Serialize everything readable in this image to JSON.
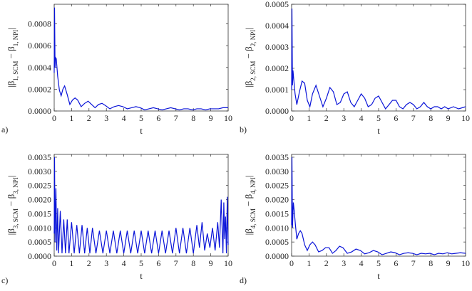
{
  "chart_data": [
    {
      "type": "line",
      "panel_label": "a)",
      "xlabel": "t",
      "ylabel": "|β1, SCM − β1, NPI|",
      "ylabel_parts": {
        "lhs": "|β",
        "lhs_sub": "1, SCM",
        "mid": " − β",
        "rhs_sub": "1, NPI",
        "end": "|"
      },
      "xlim": [
        0,
        10
      ],
      "ylim": [
        0,
        0.00098
      ],
      "xticks": [
        0,
        1,
        2,
        3,
        4,
        5,
        6,
        7,
        8,
        9,
        10
      ],
      "yticks": [
        "0.0000",
        "0.0002",
        "0.0004",
        "0.0006",
        "0.0008"
      ],
      "ytick_values": [
        0,
        0.0002,
        0.0004,
        0.0006,
        0.0008
      ],
      "series": [
        {
          "values": {
            "x": [
              0,
              0.02,
              0.05,
              0.08,
              0.12,
              0.2,
              0.3,
              0.4,
              0.5,
              0.6,
              0.75,
              0.9,
              1.05,
              1.2,
              1.35,
              1.55,
              1.75,
              1.95,
              2.15,
              2.35,
              2.55,
              2.75,
              2.95,
              3.2,
              3.45,
              3.7,
              3.95,
              4.2,
              4.45,
              4.7,
              4.95,
              5.2,
              5.45,
              5.7,
              5.95,
              6.2,
              6.45,
              6.7,
              6.95,
              7.2,
              7.45,
              7.7,
              7.95,
              8.2,
              8.45,
              8.7,
              8.95,
              9.2,
              9.45,
              9.7,
              10
            ],
            "y": [
              0.00035,
              0.00095,
              0.0004,
              0.00049,
              0.00048,
              0.00032,
              0.00019,
              0.00014,
              0.0002,
              0.00023,
              0.00015,
              6e-05,
              0.0001,
              0.00012,
              0.0001,
              4e-05,
              7e-05,
              9e-05,
              6e-05,
              3e-05,
              6e-05,
              7e-05,
              5e-05,
              2e-05,
              4e-05,
              5e-05,
              4e-05,
              2e-05,
              3e-05,
              4e-05,
              3e-05,
              1e-05,
              2e-05,
              3e-05,
              2e-05,
              1e-05,
              2e-05,
              3e-05,
              2e-05,
              1e-05,
              2e-05,
              2e-05,
              1e-05,
              2e-05,
              2e-05,
              1e-05,
              2e-05,
              2e-05,
              2e-05,
              3e-05,
              3e-05
            ]
          }
        }
      ]
    },
    {
      "type": "line",
      "panel_label": "b)",
      "xlabel": "t",
      "ylabel": "|β2, SCM − β2, NPI|",
      "ylabel_parts": {
        "lhs": "|β",
        "lhs_sub": "2, SCM",
        "mid": " − β",
        "rhs_sub": "2, NPI",
        "end": "|"
      },
      "xlim": [
        0,
        10
      ],
      "ylim": [
        0,
        0.0005
      ],
      "xticks": [
        0,
        1,
        2,
        3,
        4,
        5,
        6,
        7,
        8,
        9,
        10
      ],
      "yticks": [
        "0.0000",
        "0.0001",
        "0.0002",
        "0.0003",
        "0.0004",
        "0.0005"
      ],
      "ytick_values": [
        0,
        0.0001,
        0.0002,
        0.0003,
        0.0004,
        0.0005
      ],
      "series": [
        {
          "values": {
            "x": [
              0,
              0.02,
              0.05,
              0.08,
              0.12,
              0.2,
              0.3,
              0.45,
              0.6,
              0.75,
              0.9,
              1.05,
              1.2,
              1.4,
              1.6,
              1.8,
              2.0,
              2.2,
              2.4,
              2.6,
              2.8,
              3.0,
              3.2,
              3.4,
              3.6,
              3.8,
              4.0,
              4.2,
              4.4,
              4.6,
              4.8,
              5.0,
              5.2,
              5.4,
              5.6,
              5.8,
              6.0,
              6.2,
              6.4,
              6.6,
              6.8,
              7.0,
              7.2,
              7.4,
              7.6,
              7.8,
              8.0,
              8.2,
              8.4,
              8.6,
              8.8,
              9.0,
              9.3,
              9.6,
              10
            ],
            "y": [
              0.0001,
              0.00048,
              0.00012,
              0.00019,
              0.00015,
              8e-05,
              3e-05,
              9e-05,
              0.00014,
              0.00013,
              5e-05,
              2e-05,
              8e-05,
              0.00012,
              7e-05,
              2e-05,
              6e-05,
              0.00011,
              9e-05,
              3e-05,
              4e-05,
              8e-05,
              9e-05,
              4e-05,
              2e-05,
              5e-05,
              8e-05,
              6e-05,
              2e-05,
              3e-05,
              6e-05,
              7e-05,
              4e-05,
              1e-05,
              3e-05,
              5e-05,
              5e-05,
              2e-05,
              1e-05,
              3e-05,
              4e-05,
              3e-05,
              1e-05,
              2e-05,
              4e-05,
              2e-05,
              1e-05,
              2e-05,
              2e-05,
              1e-05,
              2e-05,
              1e-05,
              2e-05,
              1e-05,
              2e-05
            ]
          }
        }
      ]
    },
    {
      "type": "line",
      "panel_label": "c)",
      "xlabel": "t",
      "ylabel": "|β3, SCM − β3, NPI|",
      "ylabel_parts": {
        "lhs": "|β",
        "lhs_sub": "3, SCM",
        "mid": " − β",
        "rhs_sub": "3, NPI",
        "end": "|"
      },
      "xlim": [
        0,
        10
      ],
      "ylim": [
        0,
        0.0036
      ],
      "xticks": [
        0,
        1,
        2,
        3,
        4,
        5,
        6,
        7,
        8,
        9,
        10
      ],
      "yticks": [
        "0.0000",
        "0.0005",
        "0.0010",
        "0.0015",
        "0.0020",
        "0.0025",
        "0.0030",
        "0.0035"
      ],
      "ytick_values": [
        0,
        0.0005,
        0.001,
        0.0015,
        0.002,
        0.0025,
        0.003,
        0.0035
      ],
      "series": [
        {
          "values": {
            "x": [
              0,
              0.02,
              0.05,
              0.1,
              0.15,
              0.2,
              0.25,
              0.35,
              0.45,
              0.55,
              0.65,
              0.75,
              0.85,
              1.0,
              1.15,
              1.3,
              1.45,
              1.6,
              1.75,
              1.9,
              2.05,
              2.2,
              2.4,
              2.6,
              2.8,
              3.0,
              3.2,
              3.4,
              3.6,
              3.8,
              4.0,
              4.2,
              4.4,
              4.6,
              4.8,
              5.0,
              5.2,
              5.4,
              5.6,
              5.8,
              6.0,
              6.2,
              6.4,
              6.6,
              6.8,
              7.0,
              7.2,
              7.4,
              7.6,
              7.8,
              8.0,
              8.2,
              8.35,
              8.5,
              8.65,
              8.8,
              8.95,
              9.1,
              9.25,
              9.4,
              9.5,
              9.6,
              9.7,
              9.75,
              9.8,
              9.85,
              9.9,
              9.95,
              10
            ],
            "y": [
              0.0008,
              0.0035,
              0.0005,
              0.0024,
              0.0002,
              0.0017,
              0.0001,
              0.0016,
              0.0001,
              0.0013,
              0.0001,
              0.0013,
              0.0001,
              0.0012,
              0.0001,
              0.0011,
              0.0001,
              0.0011,
              0.0001,
              0.001,
              0.0001,
              0.001,
              0.0001,
              0.0009,
              0.0001,
              0.0009,
              0.0001,
              0.0009,
              0.0001,
              0.0009,
              0.0001,
              0.0009,
              0.0001,
              0.0009,
              0.0001,
              0.0009,
              0.0001,
              0.0009,
              0.0001,
              0.0009,
              0.0001,
              0.0009,
              0.0001,
              0.0009,
              0.0001,
              0.001,
              0.0001,
              0.001,
              0.0001,
              0.001,
              0.0001,
              0.0011,
              0.0003,
              0.0012,
              0.0002,
              0.0008,
              0.0003,
              0.001,
              0.0002,
              0.0012,
              0.0003,
              0.002,
              0.0001,
              0.0019,
              0.0006,
              0.0014,
              0.0001,
              0.0021,
              0.0004
            ]
          }
        }
      ]
    },
    {
      "type": "line",
      "panel_label": "d)",
      "xlabel": "t",
      "ylabel": "|β4, SCM − β4, NPI|",
      "ylabel_parts": {
        "lhs": "|β",
        "lhs_sub": "4, SCM",
        "mid": " − β",
        "rhs_sub": "4, NPI",
        "end": "|"
      },
      "xlim": [
        0,
        10
      ],
      "ylim": [
        0,
        0.0036
      ],
      "xticks": [
        0,
        1,
        2,
        3,
        4,
        5,
        6,
        7,
        8,
        9,
        10
      ],
      "yticks": [
        "0.0000",
        "0.0005",
        "0.0010",
        "0.0015",
        "0.0020",
        "0.0025",
        "0.0030",
        "0.0035"
      ],
      "ytick_values": [
        0,
        0.0005,
        0.001,
        0.0015,
        0.002,
        0.0025,
        0.003,
        0.0035
      ],
      "series": [
        {
          "values": {
            "x": [
              0,
              0.02,
              0.05,
              0.1,
              0.15,
              0.22,
              0.3,
              0.4,
              0.5,
              0.6,
              0.75,
              0.9,
              1.05,
              1.2,
              1.35,
              1.55,
              1.75,
              1.95,
              2.15,
              2.35,
              2.55,
              2.75,
              2.95,
              3.2,
              3.45,
              3.7,
              3.95,
              4.2,
              4.45,
              4.7,
              4.95,
              5.2,
              5.45,
              5.7,
              5.95,
              6.2,
              6.45,
              6.7,
              6.95,
              7.2,
              7.45,
              7.7,
              7.95,
              8.2,
              8.45,
              8.7,
              8.95,
              9.2,
              9.45,
              9.7,
              10
            ],
            "y": [
              0.0011,
              0.0035,
              0.001,
              0.0019,
              0.0016,
              0.0011,
              0.0006,
              0.0008,
              0.0009,
              0.0008,
              0.0004,
              0.0002,
              0.0004,
              0.0005,
              0.0004,
              0.00015,
              0.0002,
              0.0003,
              0.0003,
              0.0001,
              0.0002,
              0.00035,
              0.0003,
              0.0001,
              0.00015,
              0.00025,
              0.0002,
              8e-05,
              0.00012,
              0.0002,
              0.00015,
              5e-05,
              0.0001,
              0.00015,
              0.00012,
              5e-05,
              0.0001,
              0.00012,
              0.0001,
              5e-05,
              0.0001,
              8e-05,
              0.0001,
              5e-05,
              0.0001,
              8e-05,
              0.00012,
              8e-05,
              0.0001,
              0.00012,
              0.0001
            ]
          }
        }
      ]
    }
  ]
}
